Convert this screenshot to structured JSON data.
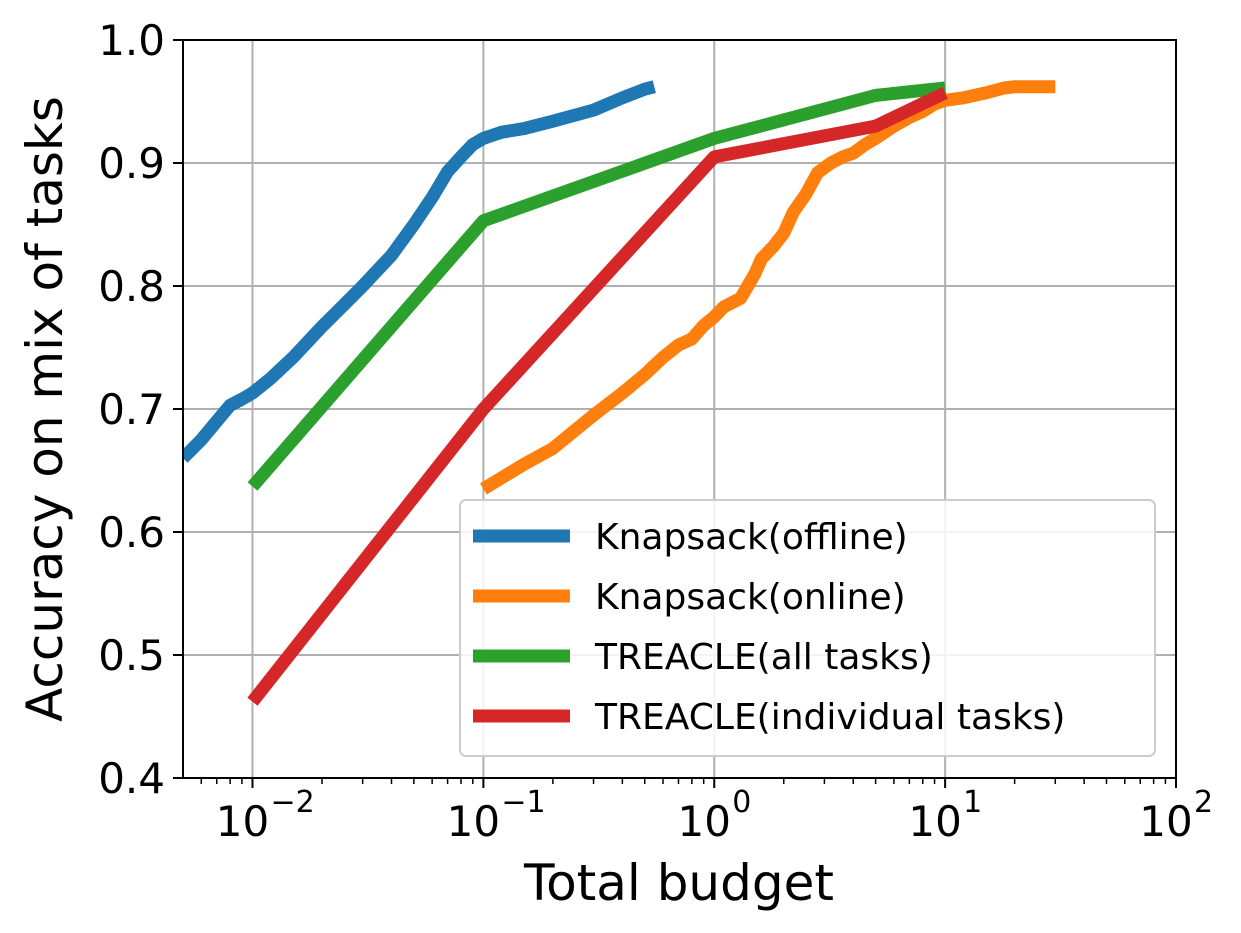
{
  "chart_data": {
    "type": "line",
    "title": "",
    "xlabel": "Total budget",
    "ylabel": "Accuracy on mix of tasks",
    "xscale": "log",
    "xlim": [
      0.005,
      100
    ],
    "ylim": [
      0.4,
      1.0
    ],
    "grid": true,
    "legend_position": "lower-right",
    "x_ticks": [
      {
        "value": 0.01,
        "base": "10",
        "exp": "−2"
      },
      {
        "value": 0.1,
        "base": "10",
        "exp": "−1"
      },
      {
        "value": 1,
        "base": "10",
        "exp": "0"
      },
      {
        "value": 10,
        "base": "10",
        "exp": "1"
      },
      {
        "value": 100,
        "base": "10",
        "exp": "2"
      }
    ],
    "y_ticks": [
      {
        "value": 0.4,
        "label": "0.4"
      },
      {
        "value": 0.5,
        "label": "0.5"
      },
      {
        "value": 0.6,
        "label": "0.6"
      },
      {
        "value": 0.7,
        "label": "0.7"
      },
      {
        "value": 0.8,
        "label": "0.8"
      },
      {
        "value": 0.9,
        "label": "0.9"
      },
      {
        "value": 1.0,
        "label": "1.0"
      }
    ],
    "series": [
      {
        "name": "Knapsack(offline)",
        "color": "#1f77b4",
        "points": [
          [
            0.005,
            0.66
          ],
          [
            0.006,
            0.675
          ],
          [
            0.007,
            0.69
          ],
          [
            0.008,
            0.703
          ],
          [
            0.009,
            0.708
          ],
          [
            0.01,
            0.713
          ],
          [
            0.012,
            0.725
          ],
          [
            0.015,
            0.742
          ],
          [
            0.02,
            0.767
          ],
          [
            0.025,
            0.785
          ],
          [
            0.03,
            0.8
          ],
          [
            0.04,
            0.825
          ],
          [
            0.05,
            0.85
          ],
          [
            0.06,
            0.872
          ],
          [
            0.07,
            0.893
          ],
          [
            0.08,
            0.905
          ],
          [
            0.09,
            0.915
          ],
          [
            0.1,
            0.92
          ],
          [
            0.12,
            0.925
          ],
          [
            0.15,
            0.928
          ],
          [
            0.2,
            0.934
          ],
          [
            0.3,
            0.943
          ],
          [
            0.4,
            0.953
          ],
          [
            0.5,
            0.96
          ],
          [
            0.55,
            0.962
          ]
        ]
      },
      {
        "name": "Knapsack(online)",
        "color": "#ff7f0e",
        "points": [
          [
            0.1,
            0.635
          ],
          [
            0.15,
            0.655
          ],
          [
            0.2,
            0.668
          ],
          [
            0.3,
            0.695
          ],
          [
            0.4,
            0.713
          ],
          [
            0.5,
            0.728
          ],
          [
            0.6,
            0.742
          ],
          [
            0.7,
            0.752
          ],
          [
            0.8,
            0.757
          ],
          [
            0.9,
            0.768
          ],
          [
            1.0,
            0.775
          ],
          [
            1.1,
            0.783
          ],
          [
            1.3,
            0.79
          ],
          [
            1.5,
            0.81
          ],
          [
            1.6,
            0.822
          ],
          [
            1.8,
            0.832
          ],
          [
            2.0,
            0.843
          ],
          [
            2.2,
            0.86
          ],
          [
            2.5,
            0.875
          ],
          [
            2.8,
            0.892
          ],
          [
            3.2,
            0.9
          ],
          [
            3.6,
            0.905
          ],
          [
            4.0,
            0.908
          ],
          [
            4.5,
            0.915
          ],
          [
            5.0,
            0.92
          ],
          [
            6.0,
            0.93
          ],
          [
            7.0,
            0.937
          ],
          [
            8.0,
            0.942
          ],
          [
            9.0,
            0.948
          ],
          [
            10.0,
            0.951
          ],
          [
            12.0,
            0.953
          ],
          [
            15.0,
            0.957
          ],
          [
            18.0,
            0.961
          ],
          [
            20.0,
            0.962
          ],
          [
            30.0,
            0.962
          ]
        ]
      },
      {
        "name": "TREACLE(all tasks)",
        "color": "#2ca02c",
        "points": [
          [
            0.01,
            0.637
          ],
          [
            0.1,
            0.853
          ],
          [
            1.0,
            0.92
          ],
          [
            5.0,
            0.955
          ],
          [
            10.0,
            0.961
          ]
        ]
      },
      {
        "name": "TREACLE(individual tasks)",
        "color": "#d62728",
        "points": [
          [
            0.01,
            0.462
          ],
          [
            0.1,
            0.7
          ],
          [
            1.0,
            0.905
          ],
          [
            5.0,
            0.93
          ],
          [
            10.0,
            0.957
          ]
        ]
      }
    ]
  }
}
